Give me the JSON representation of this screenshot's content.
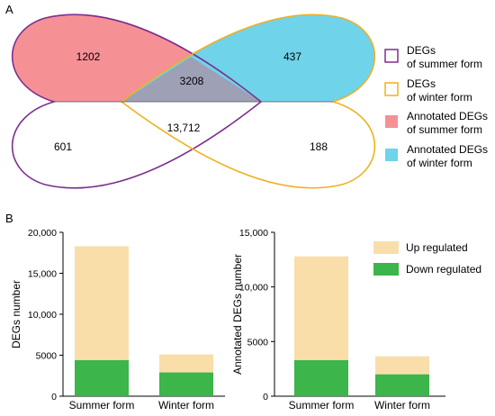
{
  "panel_a": {
    "label": "A",
    "counts": {
      "summer_annotated_only": "1202",
      "both_annotated": "3208",
      "winter_annotated_only": "437",
      "summer_only": "601",
      "both": "13,712",
      "winter_only": "188"
    },
    "legend": [
      {
        "line1": "DEGs",
        "line2": "of summer form",
        "style": "outline",
        "color": "#7b2f8e"
      },
      {
        "line1": "DEGs",
        "line2": "of winter form",
        "style": "outline",
        "color": "#f0b020"
      },
      {
        "line1": "Annotated DEGs",
        "line2": "of summer form",
        "style": "fill",
        "color": "#f59095"
      },
      {
        "line1": "Annotated DEGs",
        "line2": "of winter form",
        "style": "fill",
        "color": "#6fd3ea"
      }
    ],
    "colors": {
      "summer_outline": "#7b2f8e",
      "winter_outline": "#f0b020",
      "summer_fill": "#f59095",
      "winter_fill": "#6fd3ea",
      "overlap_fill": "#9ea0b5"
    }
  },
  "panel_b_label": "B",
  "chart_data": [
    {
      "type": "bar",
      "stacked": true,
      "categories": [
        "Summer form",
        "Winter form"
      ],
      "series": [
        {
          "name": "Up regulated",
          "values": [
            13900,
            2200
          ],
          "color": "#f9deaa"
        },
        {
          "name": "Down regulated",
          "values": [
            4400,
            2900
          ],
          "color": "#3cb54a"
        }
      ],
      "ylabel": "DEGs number",
      "ylim": [
        0,
        20000
      ],
      "yticks": [
        0,
        5000,
        10000,
        15000,
        20000
      ],
      "ytick_labels": [
        "0",
        "5000",
        "10,000",
        "15,000",
        "20,000"
      ]
    },
    {
      "type": "bar",
      "stacked": true,
      "categories": [
        "Summer form",
        "Winter form"
      ],
      "series": [
        {
          "name": "Up regulated",
          "values": [
            9500,
            1650
          ],
          "color": "#f9deaa"
        },
        {
          "name": "Down regulated",
          "values": [
            3300,
            2000
          ],
          "color": "#3cb54a"
        }
      ],
      "ylabel": "Annotated DEGs number",
      "ylim": [
        0,
        15000
      ],
      "yticks": [
        0,
        5000,
        10000,
        15000
      ],
      "ytick_labels": [
        "0",
        "5000",
        "10,000",
        "15,000"
      ],
      "legend": [
        "Up regulated",
        "Down regulated"
      ],
      "legend_position": "top-right"
    }
  ]
}
